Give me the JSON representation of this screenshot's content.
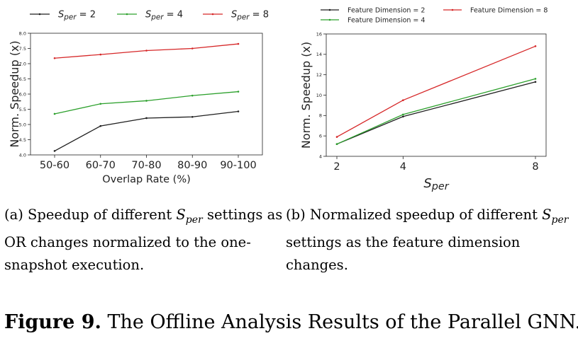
{
  "chart_data": [
    {
      "type": "line",
      "categories": [
        "50-60",
        "60-70",
        "70-80",
        "80-90",
        "90-100"
      ],
      "xlabel": "Overlap Rate (%)",
      "ylabel": "Norm. Speedup (x)",
      "ylim": [
        4.0,
        8.0
      ],
      "yticks": [
        "4.0",
        "4.5",
        "5.0",
        "5.5",
        "6.0",
        "6.5",
        "7.0",
        "7.5",
        "8.0"
      ],
      "legend_position": "top",
      "series": [
        {
          "name": "S_per = 2",
          "color": "#1f1f1f",
          "values": [
            4.13,
            4.95,
            5.21,
            5.25,
            5.43
          ]
        },
        {
          "name": "S_per = 4",
          "color": "#2ca02c",
          "values": [
            5.35,
            5.68,
            5.78,
            5.95,
            6.08
          ]
        },
        {
          "name": "S_per = 8",
          "color": "#d62728",
          "values": [
            7.18,
            7.3,
            7.43,
            7.5,
            7.65
          ]
        }
      ]
    },
    {
      "type": "line",
      "x": [
        2,
        4,
        8
      ],
      "categories": [
        "2",
        "4",
        "8"
      ],
      "xlabel": "S_per",
      "ylabel": "Norm. Speedup (x)",
      "ylim": [
        4,
        16
      ],
      "yticks": [
        "4",
        "6",
        "8",
        "10",
        "12",
        "14",
        "16"
      ],
      "legend_position": "top",
      "series": [
        {
          "name": "Feature Dimension = 2",
          "color": "#1f1f1f",
          "values": [
            5.2,
            7.9,
            11.3
          ]
        },
        {
          "name": "Feature Dimension = 4",
          "color": "#2ca02c",
          "values": [
            5.2,
            8.1,
            11.6
          ]
        },
        {
          "name": "Feature Dimension = 8",
          "color": "#d62728",
          "values": [
            5.9,
            9.5,
            14.8
          ]
        }
      ]
    }
  ],
  "captions": {
    "a_prefix": "(a) Speedup of different",
    "a_suffix": "settings as OR changes normalized to the one-snapshot execution.",
    "b_prefix": "(b) Normalized speedup of different",
    "b_suffix": "settings as the feature dimension changes.",
    "symbol_base": "S",
    "symbol_sub": "per"
  },
  "figure_title": {
    "label": "Figure 9.",
    "text": "The Offline Analysis Results of the Parallel GNN."
  }
}
